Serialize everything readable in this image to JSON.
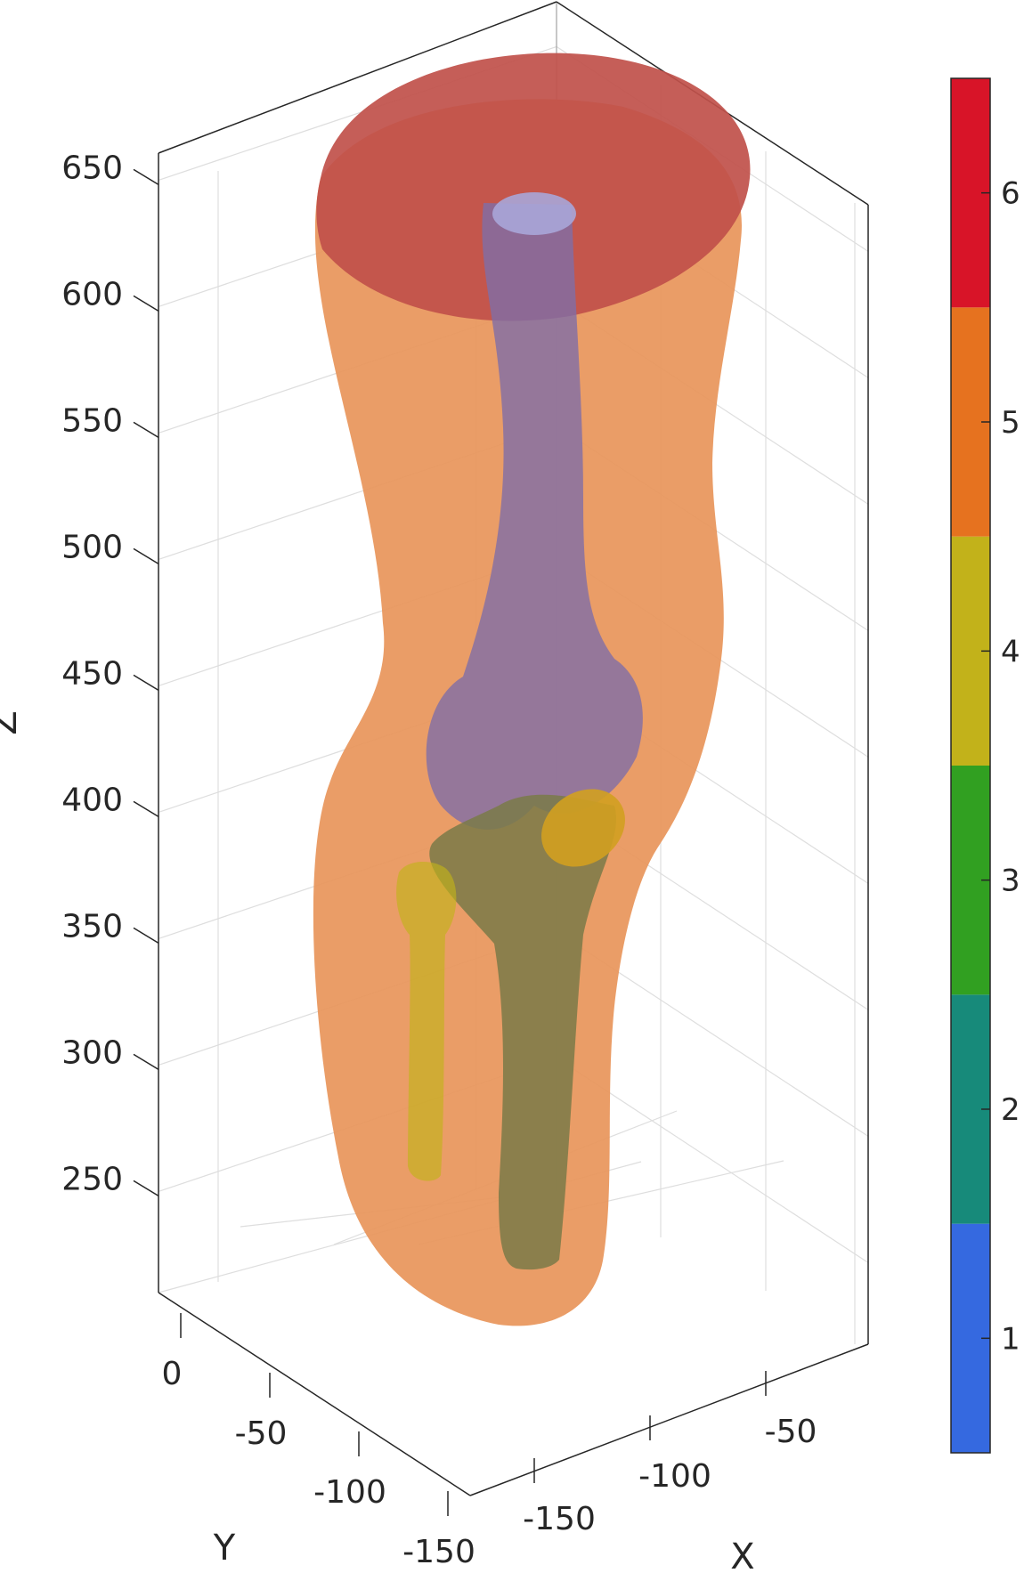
{
  "chart_data": {
    "type": "3d-surface",
    "title": "",
    "axes": {
      "x": {
        "label": "X",
        "ticks": [
          -50,
          -100,
          -150
        ]
      },
      "y": {
        "label": "Y",
        "ticks": [
          0,
          -50,
          -100,
          -150
        ]
      },
      "z": {
        "label": "Z",
        "ticks": [
          650,
          600,
          550,
          500,
          450,
          400,
          350,
          300,
          250
        ],
        "range": [
          210,
          660
        ]
      }
    },
    "grid": true,
    "colorbar": {
      "ticks": [
        1,
        2,
        3,
        4,
        5,
        6
      ],
      "range": [
        0.5,
        6.5
      ],
      "colors": [
        "#3569e0",
        "#178a7a",
        "#31a021",
        "#c2b21a",
        "#e6721f",
        "#d81428"
      ],
      "position": "right"
    },
    "series": [
      {
        "value": 6,
        "color": "#c0504a"
      },
      {
        "value": 5,
        "color": "#e8955a"
      },
      {
        "value": 4,
        "color": "#c2b21a"
      },
      {
        "value": 3,
        "color": "#7a7a48"
      },
      {
        "value": 1,
        "color": "#7f6ea8"
      }
    ]
  }
}
